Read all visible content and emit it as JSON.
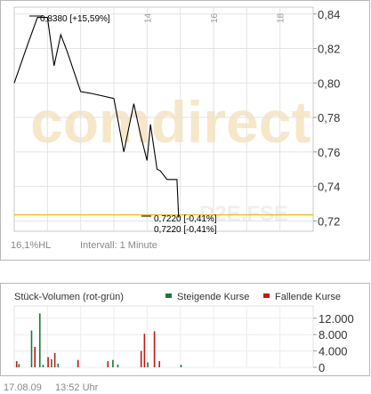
{
  "chart_data": [
    {
      "type": "line",
      "x_ticks": [
        "14",
        "16",
        "18"
      ],
      "y_ticks": [
        "0,84",
        "0,82",
        "0,80",
        "0,78",
        "0,76",
        "0,74",
        "0,72"
      ],
      "ylim": [
        0.714,
        0.844
      ],
      "xlim": [
        10.0,
        19.0
      ],
      "series": [
        {
          "x": [
            10.0,
            10.4,
            10.7,
            11.0,
            11.2,
            11.4,
            11.6,
            12.0,
            12.3,
            13.0,
            13.3,
            13.6,
            13.8,
            14.0,
            14.1,
            14.3,
            14.4,
            14.6,
            14.9,
            14.95
          ],
          "y": [
            0.8,
            0.822,
            0.838,
            0.838,
            0.81,
            0.828,
            0.818,
            0.795,
            0.794,
            0.791,
            0.76,
            0.788,
            0.77,
            0.755,
            0.776,
            0.75,
            0.749,
            0.744,
            0.744,
            0.722
          ]
        }
      ],
      "reference_line": 0.7235,
      "reference_color": "#e8c200",
      "line_color": "#000000",
      "grid": true,
      "annotations": {
        "high": "0,8380 [+15,59%]",
        "last1": "0,7220 [-0,41%]",
        "last2": "0,7220 [-0,41%]"
      },
      "watermark": "comdirect",
      "exchange": "D2E.FSE",
      "footer_left": "16,1%HL",
      "footer_interval": "Intervall: 1 Minute"
    },
    {
      "type": "bar",
      "title": "Stück-Volumen (rot-grün)",
      "legend": [
        {
          "name": "Steigende Kurse",
          "color": "#1a7a3a"
        },
        {
          "name": "Fallende Kurse",
          "color": "#c01818"
        }
      ],
      "y_ticks": [
        "12.000",
        "8.000",
        "4.000",
        "0"
      ],
      "ylim": [
        0,
        15000
      ],
      "xlim": [
        10.0,
        19.0
      ],
      "bars": [
        {
          "x": 10.05,
          "v": 1500,
          "c": "#c01818"
        },
        {
          "x": 10.12,
          "v": 800,
          "c": "#1a7a3a"
        },
        {
          "x": 10.5,
          "v": 9000,
          "c": "#1a7a3a"
        },
        {
          "x": 10.6,
          "v": 5000,
          "c": "#c01818"
        },
        {
          "x": 10.75,
          "v": 13200,
          "c": "#1a7a3a"
        },
        {
          "x": 10.85,
          "v": 600,
          "c": "#1a7a3a"
        },
        {
          "x": 11.0,
          "v": 2500,
          "c": "#c01818"
        },
        {
          "x": 11.1,
          "v": 2000,
          "c": "#1a7a3a"
        },
        {
          "x": 11.2,
          "v": 3500,
          "c": "#c01818"
        },
        {
          "x": 11.3,
          "v": 900,
          "c": "#1a7a3a"
        },
        {
          "x": 11.9,
          "v": 1800,
          "c": "#c01818"
        },
        {
          "x": 12.8,
          "v": 1500,
          "c": "#c01818"
        },
        {
          "x": 12.95,
          "v": 1800,
          "c": "#1a7a3a"
        },
        {
          "x": 13.1,
          "v": 700,
          "c": "#1a7a3a"
        },
        {
          "x": 13.8,
          "v": 4000,
          "c": "#c01818"
        },
        {
          "x": 13.9,
          "v": 8200,
          "c": "#c01818"
        },
        {
          "x": 14.0,
          "v": 1200,
          "c": "#1a7a3a"
        },
        {
          "x": 14.2,
          "v": 8800,
          "c": "#c01818"
        },
        {
          "x": 14.35,
          "v": 1500,
          "c": "#c01818"
        },
        {
          "x": 15.0,
          "v": 600,
          "c": "#1a7a3a"
        }
      ]
    }
  ],
  "footer": {
    "date": "17.08.09",
    "time": "13:52 Uhr"
  }
}
